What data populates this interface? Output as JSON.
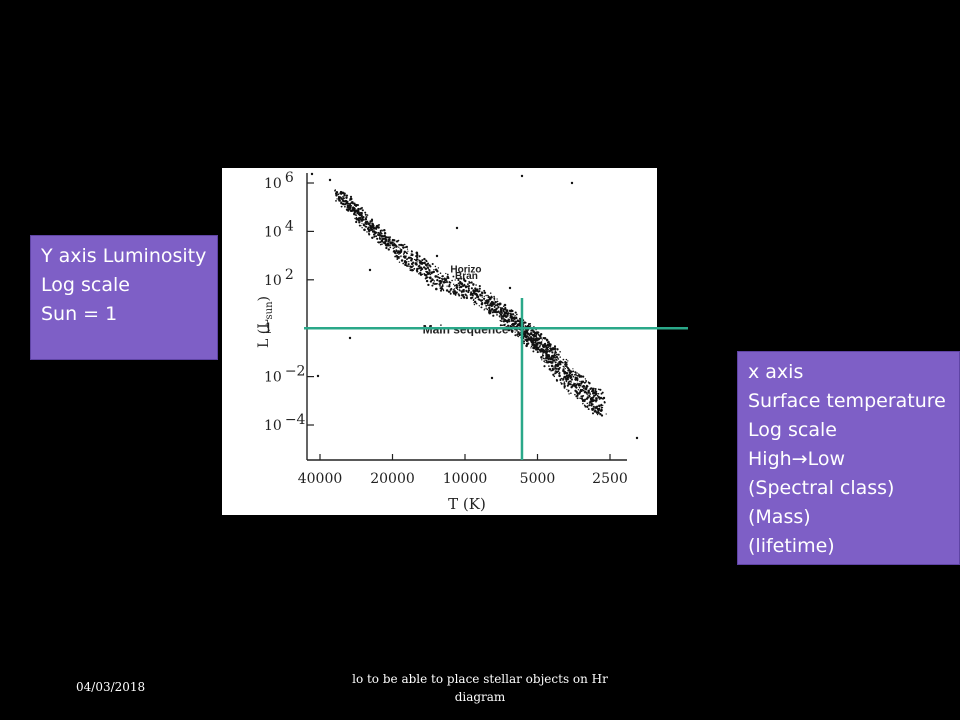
{
  "slide": {
    "date": "04/03/2018",
    "footer_note": "lo to be able to place stellar  objects on Hr diagram"
  },
  "y_callout": {
    "lines": [
      "Y axis Luminosity",
      "Log scale",
      "Sun = 1"
    ]
  },
  "x_callout": {
    "lines": [
      "x axis",
      "Surface temperature",
      "Log scale",
      "High",
      "Low",
      "(Spectral class)",
      "(Mass)",
      "(lifetime)"
    ],
    "arrow": "→"
  },
  "colors": {
    "background": "#000000",
    "callout_fill": "#7e5fc6",
    "crosshair": "#2aa889",
    "points": "#111111"
  },
  "chart_data": {
    "type": "scatter",
    "x_scale": "log",
    "y_scale": "log",
    "x_reversed": true,
    "xlabel": "T (K)",
    "ylabel": "L (L",
    "ylabel_sub": "sun",
    "ylabel_close": ")",
    "x_ticks": [
      {
        "value": 40000,
        "label": "40000"
      },
      {
        "value": 20000,
        "label": "20000"
      },
      {
        "value": 10000,
        "label": "10000"
      },
      {
        "value": 5000,
        "label": "5000"
      },
      {
        "value": 2500,
        "label": "2500"
      }
    ],
    "y_ticks": [
      {
        "value": 1000000,
        "base": "10",
        "exp": "6"
      },
      {
        "value": 10000,
        "base": "10",
        "exp": "4"
      },
      {
        "value": 100,
        "base": "10",
        "exp": "2"
      },
      {
        "value": 1,
        "base": "1",
        "exp": ""
      },
      {
        "value": 0.01,
        "base": "10",
        "exp": "−2"
      },
      {
        "value": 0.0001,
        "base": "10",
        "exp": "−4"
      }
    ],
    "annotations": [
      {
        "text": "Main sequence",
        "x": 15000,
        "y": 0.6
      },
      {
        "text": "Horizo",
        "x": 11500,
        "y": 200
      },
      {
        "text": "Bran",
        "x": 11000,
        "y": 110
      }
    ],
    "crosshair": {
      "x": 5800,
      "y": 1
    },
    "main_sequence": [
      {
        "x": 34000,
        "y": 400000
      },
      {
        "x": 28000,
        "y": 60000
      },
      {
        "x": 24000,
        "y": 12000
      },
      {
        "x": 20000,
        "y": 2500
      },
      {
        "x": 16000,
        "y": 500
      },
      {
        "x": 13000,
        "y": 100
      },
      {
        "x": 10000,
        "y": 40
      },
      {
        "x": 8000,
        "y": 12
      },
      {
        "x": 6800,
        "y": 3
      },
      {
        "x": 6000,
        "y": 1.2
      },
      {
        "x": 5500,
        "y": 0.6
      },
      {
        "x": 5000,
        "y": 0.25
      },
      {
        "x": 4500,
        "y": 0.08
      },
      {
        "x": 4000,
        "y": 0.02
      },
      {
        "x": 3500,
        "y": 0.005
      },
      {
        "x": 3000,
        "y": 0.0015
      },
      {
        "x": 2700,
        "y": 0.0006
      }
    ]
  }
}
